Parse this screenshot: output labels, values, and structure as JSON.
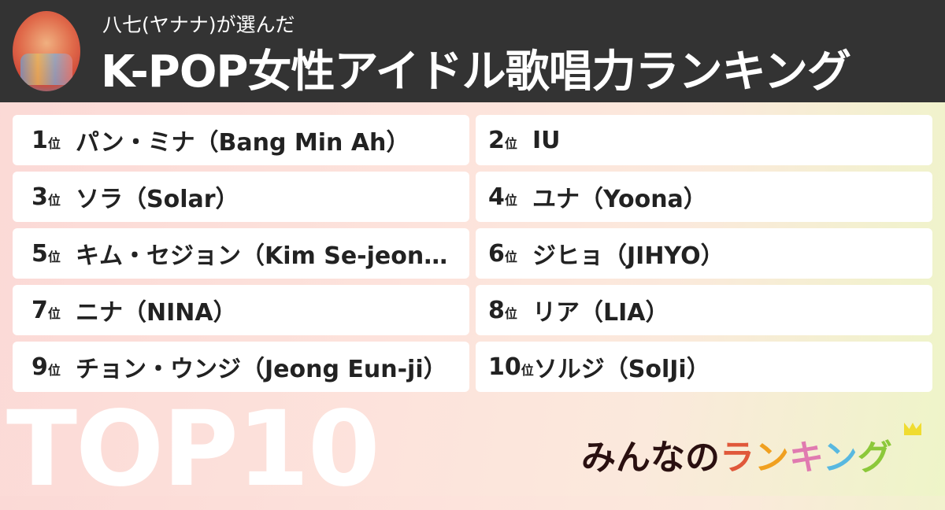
{
  "header": {
    "subtitle": "八七(ヤナナ)が選んだ",
    "title": "K-POP女性アイドル歌唱力ランキング",
    "avatar": "user-avatar"
  },
  "rank_suffix": "位",
  "items": [
    {
      "rank": "1",
      "name": "パン・ミナ（Bang Min Ah）"
    },
    {
      "rank": "2",
      "name": "IU"
    },
    {
      "rank": "3",
      "name": "ソラ（Solar）"
    },
    {
      "rank": "4",
      "name": "ユナ（Yoona）"
    },
    {
      "rank": "5",
      "name": "キム・セジョン（Kim Se-jeong）"
    },
    {
      "rank": "6",
      "name": "ジヒョ（JIHYO）"
    },
    {
      "rank": "7",
      "name": "ニナ（NINA）"
    },
    {
      "rank": "8",
      "name": "リア（LIA）"
    },
    {
      "rank": "9",
      "name": "チョン・ウンジ（Jeong Eun-ji）"
    },
    {
      "rank": "10",
      "name": "ソルジ（SolJi）"
    }
  ],
  "badge": "TOP10",
  "logo": {
    "part1": "みんなの",
    "letters": [
      {
        "ch": "ラ",
        "color": "#e0583a"
      },
      {
        "ch": "ン",
        "color": "#f0a020"
      },
      {
        "ch": "キ",
        "color": "#e07ab0"
      },
      {
        "ch": "ン",
        "color": "#58b8e0"
      },
      {
        "ch": "グ",
        "color": "#8cc83a"
      }
    ]
  }
}
